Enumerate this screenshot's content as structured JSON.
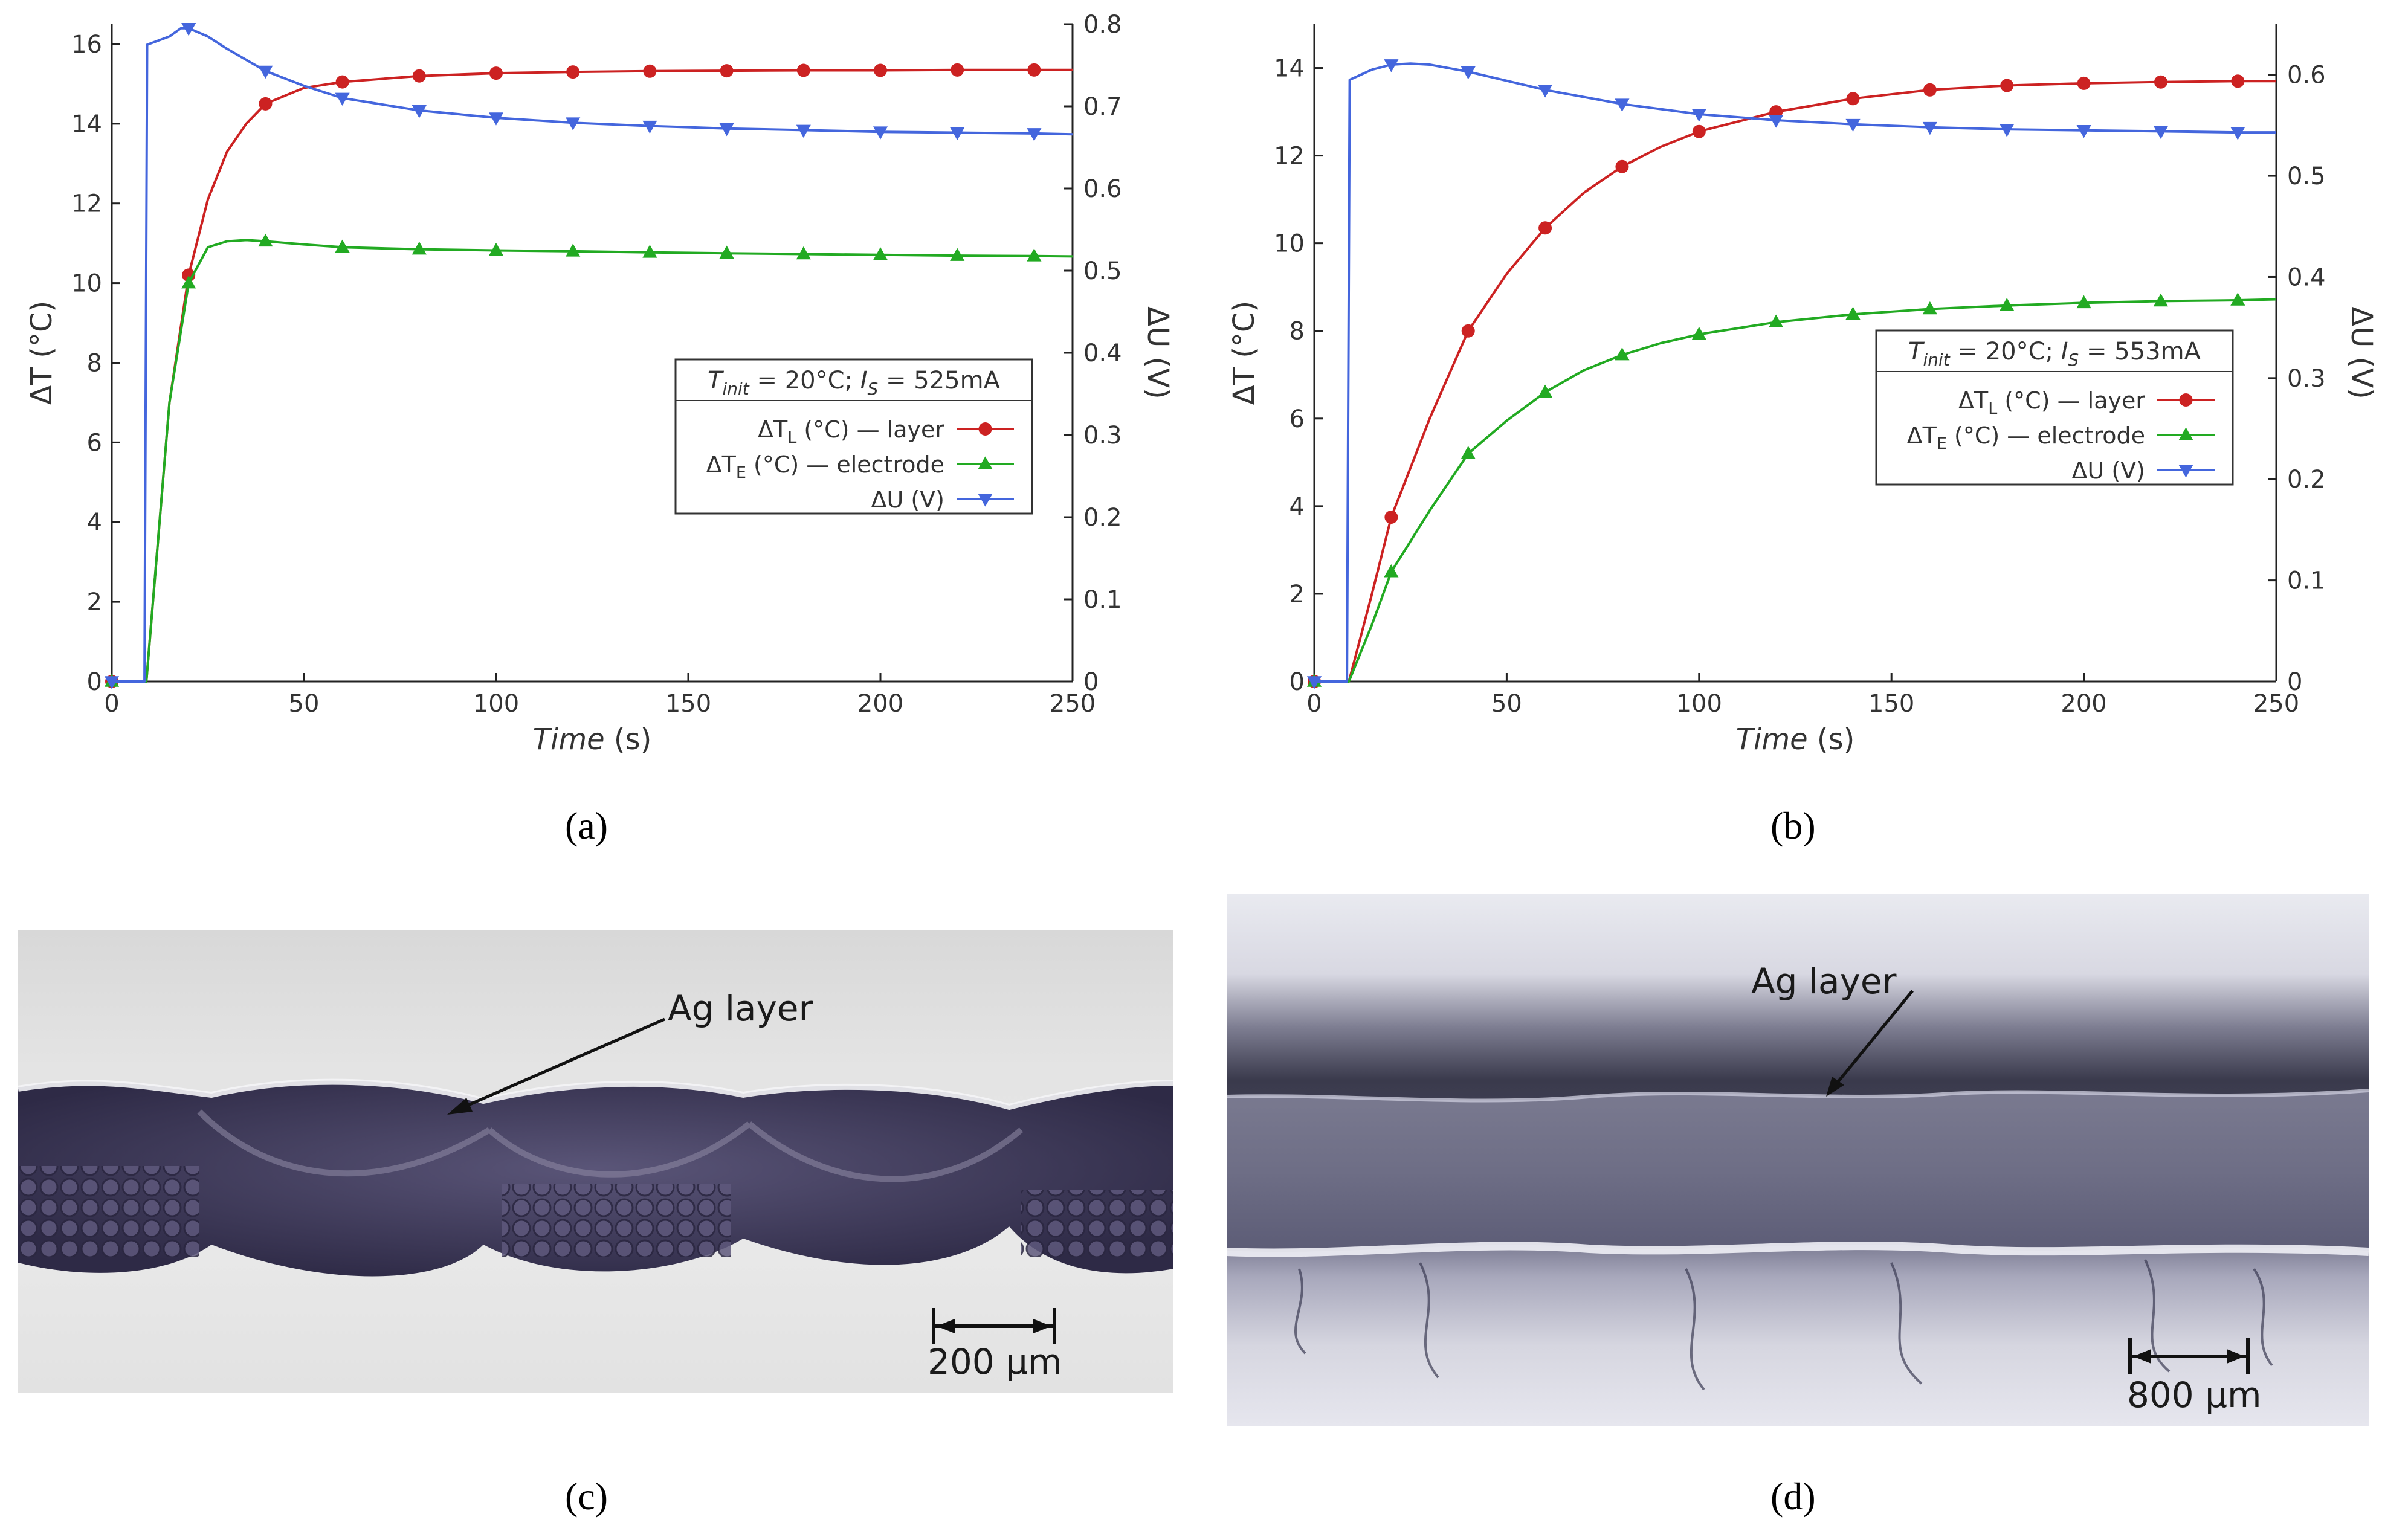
{
  "chart_data": [
    {
      "panel": "a",
      "type": "line",
      "title": "",
      "xlabel_italic": "Time",
      "xlabel_unit": "(s)",
      "ylabel_left": "ΔT (°C)",
      "ylabel_right": "ΔU (V)",
      "xlim": [
        0,
        250
      ],
      "ylim_left": [
        0,
        16.5
      ],
      "ylim_right": [
        0,
        0.8
      ],
      "x_ticks": [
        "0",
        "50",
        "100",
        "150",
        "200",
        "250"
      ],
      "x_tick_values": [
        0,
        50,
        100,
        150,
        200,
        250
      ],
      "y_left_ticks": [
        "0",
        "2",
        "4",
        "6",
        "8",
        "10",
        "12",
        "14",
        "16"
      ],
      "y_left_tick_values": [
        0,
        2,
        4,
        6,
        8,
        10,
        12,
        14,
        16
      ],
      "y_right_ticks": [
        "0",
        "0.1",
        "0.2",
        "0.3",
        "0.4",
        "0.5",
        "0.6",
        "0.7",
        "0.8"
      ],
      "y_right_tick_values": [
        0,
        0.1,
        0.2,
        0.3,
        0.4,
        0.5,
        0.6,
        0.7,
        0.8
      ],
      "legend": {
        "header_T": "T",
        "header_sub": "init",
        "header_mid": " = 20°C; ",
        "header_I": "I",
        "header_isub": "S",
        "header_value": " = 525mA",
        "location": "center-right"
      },
      "series": [
        {
          "name": "ΔT_L (°C) — layer",
          "legend_prefix": "ΔT",
          "legend_sub": "L",
          "legend_suffix": " (°C) — layer",
          "axis": "left",
          "color": "#cc2222",
          "marker": "circle",
          "x": [
            0,
            9,
            12,
            15,
            20,
            25,
            30,
            35,
            40,
            50,
            60,
            80,
            100,
            120,
            140,
            160,
            180,
            200,
            220,
            240,
            250
          ],
          "y": [
            0,
            0,
            3.5,
            7.0,
            10.2,
            12.1,
            13.3,
            14.0,
            14.5,
            14.9,
            15.05,
            15.2,
            15.27,
            15.3,
            15.32,
            15.33,
            15.34,
            15.34,
            15.35,
            15.35,
            15.35
          ],
          "marker_x": [
            0,
            20,
            40,
            60,
            80,
            100,
            120,
            140,
            160,
            180,
            200,
            220,
            240
          ]
        },
        {
          "name": "ΔT_E (°C) — electrode",
          "legend_prefix": "ΔT",
          "legend_sub": "E",
          "legend_suffix": " (°C) — electrode",
          "axis": "left",
          "color": "#22aa22",
          "marker": "triangle-up",
          "x": [
            0,
            9,
            12,
            15,
            20,
            25,
            30,
            35,
            40,
            50,
            60,
            80,
            100,
            120,
            140,
            160,
            180,
            200,
            220,
            240,
            250
          ],
          "y": [
            0,
            0,
            3.5,
            7.0,
            10.0,
            10.9,
            11.05,
            11.08,
            11.05,
            10.97,
            10.9,
            10.85,
            10.82,
            10.8,
            10.77,
            10.75,
            10.73,
            10.71,
            10.69,
            10.68,
            10.67
          ],
          "marker_x": [
            0,
            20,
            40,
            60,
            80,
            100,
            120,
            140,
            160,
            180,
            200,
            220,
            240
          ]
        },
        {
          "name": "ΔU (V)",
          "legend_prefix": "ΔU",
          "legend_sub": "",
          "legend_suffix": " (V)",
          "axis": "right",
          "color": "#4466dd",
          "marker": "triangle-down",
          "x": [
            0,
            8.5,
            9.2,
            15,
            18,
            20,
            25,
            30,
            40,
            50,
            60,
            80,
            100,
            120,
            140,
            160,
            180,
            200,
            220,
            240,
            250
          ],
          "y": [
            0,
            0,
            0.775,
            0.785,
            0.795,
            0.795,
            0.785,
            0.77,
            0.743,
            0.725,
            0.71,
            0.695,
            0.686,
            0.68,
            0.676,
            0.673,
            0.671,
            0.669,
            0.668,
            0.667,
            0.666
          ],
          "marker_x": [
            0,
            20,
            40,
            60,
            80,
            100,
            120,
            140,
            160,
            180,
            200,
            220,
            240
          ]
        }
      ]
    },
    {
      "panel": "b",
      "type": "line",
      "title": "",
      "xlabel_italic": "Time",
      "xlabel_unit": "(s)",
      "ylabel_left": "ΔT (°C)",
      "ylabel_right": "ΔU (V)",
      "xlim": [
        0,
        250
      ],
      "ylim_left": [
        0,
        15
      ],
      "ylim_right": [
        0,
        0.65
      ],
      "x_ticks": [
        "0",
        "50",
        "100",
        "150",
        "200",
        "250"
      ],
      "x_tick_values": [
        0,
        50,
        100,
        150,
        200,
        250
      ],
      "y_left_ticks": [
        "0",
        "2",
        "4",
        "6",
        "8",
        "10",
        "12",
        "14"
      ],
      "y_left_tick_values": [
        0,
        2,
        4,
        6,
        8,
        10,
        12,
        14
      ],
      "y_right_ticks": [
        "0",
        "0.1",
        "0.2",
        "0.3",
        "0.4",
        "0.5",
        "0.6"
      ],
      "y_right_tick_values": [
        0,
        0.1,
        0.2,
        0.3,
        0.4,
        0.5,
        0.6
      ],
      "legend": {
        "header_T": "T",
        "header_sub": "init",
        "header_mid": " = 20°C; ",
        "header_I": "I",
        "header_isub": "S",
        "header_value": " = 553mA",
        "location": "center-right"
      },
      "series": [
        {
          "name": "ΔT_L (°C) — layer",
          "legend_prefix": "ΔT",
          "legend_sub": "L",
          "legend_suffix": " (°C) — layer",
          "axis": "left",
          "color": "#cc2222",
          "marker": "circle",
          "x": [
            0,
            9,
            15,
            20,
            30,
            40,
            50,
            60,
            70,
            80,
            90,
            100,
            120,
            140,
            160,
            180,
            200,
            220,
            240,
            250
          ],
          "y": [
            0,
            0,
            2.0,
            3.75,
            6.0,
            8.0,
            9.3,
            10.35,
            11.15,
            11.75,
            12.2,
            12.55,
            13.0,
            13.3,
            13.5,
            13.6,
            13.65,
            13.68,
            13.7,
            13.7
          ],
          "marker_x": [
            0,
            20,
            40,
            60,
            80,
            100,
            120,
            140,
            160,
            180,
            200,
            220,
            240
          ]
        },
        {
          "name": "ΔT_E (°C) — electrode",
          "legend_prefix": "ΔT",
          "legend_sub": "E",
          "legend_suffix": " (°C) — electrode",
          "axis": "left",
          "color": "#22aa22",
          "marker": "triangle-up",
          "x": [
            0,
            9,
            15,
            20,
            30,
            40,
            50,
            60,
            70,
            80,
            90,
            100,
            120,
            140,
            160,
            180,
            200,
            220,
            240,
            250
          ],
          "y": [
            0,
            0,
            1.3,
            2.5,
            3.9,
            5.2,
            5.95,
            6.6,
            7.1,
            7.45,
            7.72,
            7.92,
            8.2,
            8.38,
            8.5,
            8.58,
            8.64,
            8.68,
            8.7,
            8.72
          ],
          "marker_x": [
            0,
            20,
            40,
            60,
            80,
            100,
            120,
            140,
            160,
            180,
            200,
            220,
            240
          ]
        },
        {
          "name": "ΔU (V)",
          "legend_prefix": "ΔU",
          "legend_sub": "",
          "legend_suffix": " (V)",
          "axis": "right",
          "color": "#4466dd",
          "marker": "triangle-down",
          "x": [
            0,
            8.5,
            9.2,
            15,
            20,
            25,
            30,
            40,
            50,
            60,
            80,
            100,
            120,
            140,
            160,
            180,
            200,
            220,
            240,
            250
          ],
          "y": [
            0,
            0,
            0.595,
            0.605,
            0.61,
            0.611,
            0.61,
            0.603,
            0.594,
            0.585,
            0.571,
            0.561,
            0.555,
            0.551,
            0.548,
            0.546,
            0.545,
            0.544,
            0.543,
            0.543
          ],
          "marker_x": [
            0,
            20,
            40,
            60,
            80,
            100,
            120,
            140,
            160,
            180,
            200,
            220,
            240
          ]
        }
      ]
    }
  ],
  "panels": {
    "a": "(a)",
    "b": "(b)",
    "c": "(c)",
    "d": "(d)"
  },
  "micrographs": {
    "c": {
      "annotation": "Ag layer",
      "scale_bar": "200 μm"
    },
    "d": {
      "annotation": "Ag layer",
      "scale_bar": "800 μm"
    }
  },
  "colors": {
    "layer": "#cc2222",
    "electrode": "#22aa22",
    "voltage": "#4466dd",
    "fabric": "#4a4466"
  }
}
